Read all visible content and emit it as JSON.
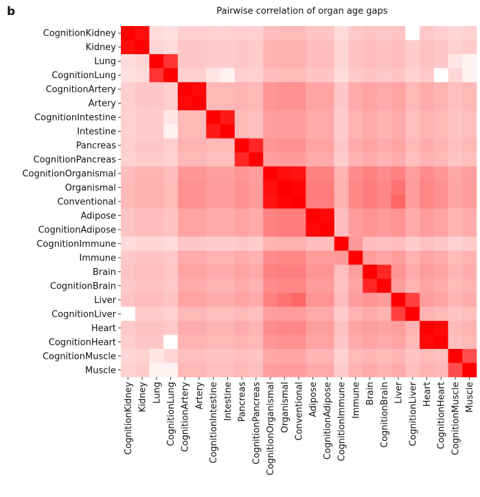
{
  "chart_data": {
    "type": "heatmap",
    "panel_label": "b",
    "title": "Pairwise correlation of organ age gaps",
    "categories": [
      "CognitionKidney",
      "Kidney",
      "Lung",
      "CognitionLung",
      "CognitionArtery",
      "Artery",
      "CognitionIntestine",
      "Intestine",
      "Pancreas",
      "CognitionPancreas",
      "CognitionOrganismal",
      "Organismal",
      "Conventional",
      "Adipose",
      "CognitionAdipose",
      "CognitionImmune",
      "Immune",
      "Brain",
      "CognitionBrain",
      "Liver",
      "CognitionLiver",
      "Heart",
      "CognitionHeart",
      "CognitionMuscle",
      "Muscle"
    ],
    "color_low": "#ffffff",
    "color_high": "#ff0000",
    "zlim": [
      0,
      1
    ],
    "values": [
      [
        1,
        0.95,
        0.14,
        0.12,
        0.19,
        0.19,
        0.18,
        0.18,
        0.19,
        0.18,
        0.26,
        0.27,
        0.27,
        0.23,
        0.23,
        0.14,
        0.21,
        0.23,
        0.21,
        0.23,
        0,
        0.21,
        0.19,
        0.16,
        0.18
      ],
      [
        0.95,
        1,
        0.16,
        0.14,
        0.22,
        0.22,
        0.2,
        0.2,
        0.22,
        0.2,
        0.3,
        0.31,
        0.31,
        0.26,
        0.26,
        0.16,
        0.24,
        0.26,
        0.24,
        0.26,
        0.2,
        0.24,
        0.22,
        0.18,
        0.2
      ],
      [
        0.14,
        0.16,
        1,
        0.8,
        0.22,
        0.22,
        0.2,
        0.2,
        0.22,
        0.2,
        0.3,
        0.31,
        0.31,
        0.26,
        0.26,
        0.16,
        0.24,
        0.26,
        0.24,
        0.26,
        0.2,
        0.24,
        0.22,
        0.1,
        0.05
      ],
      [
        0.12,
        0.14,
        0.8,
        1,
        0.19,
        0.19,
        0.1,
        0.05,
        0.19,
        0.18,
        0.26,
        0.27,
        0.27,
        0.23,
        0.23,
        0.14,
        0.21,
        0.23,
        0.21,
        0.23,
        0.18,
        0.21,
        0,
        0.16,
        0.05
      ],
      [
        0.19,
        0.22,
        0.22,
        0.19,
        1,
        0.97,
        0.28,
        0.28,
        0.3,
        0.28,
        0.41,
        0.43,
        0.43,
        0.36,
        0.36,
        0.22,
        0.33,
        0.36,
        0.33,
        0.36,
        0.28,
        0.33,
        0.3,
        0.25,
        0.28
      ],
      [
        0.19,
        0.22,
        0.22,
        0.19,
        0.97,
        1,
        0.28,
        0.28,
        0.3,
        0.28,
        0.41,
        0.43,
        0.43,
        0.36,
        0.36,
        0.22,
        0.33,
        0.36,
        0.33,
        0.36,
        0.28,
        0.33,
        0.3,
        0.25,
        0.28
      ],
      [
        0.18,
        0.2,
        0.2,
        0.1,
        0.28,
        0.28,
        1,
        0.9,
        0.28,
        0.25,
        0.38,
        0.39,
        0.39,
        0.33,
        0.33,
        0.2,
        0.3,
        0.33,
        0.3,
        0.33,
        0.25,
        0.3,
        0.28,
        0.23,
        0.25
      ],
      [
        0.18,
        0.2,
        0.2,
        0.05,
        0.28,
        0.28,
        0.9,
        1,
        0.28,
        0.25,
        0.38,
        0.39,
        0.39,
        0.33,
        0.33,
        0.2,
        0.3,
        0.33,
        0.3,
        0.33,
        0.25,
        0.3,
        0.28,
        0.23,
        0.25
      ],
      [
        0.19,
        0.22,
        0.22,
        0.19,
        0.3,
        0.3,
        0.28,
        0.28,
        1,
        0.85,
        0.41,
        0.43,
        0.43,
        0.36,
        0.36,
        0.22,
        0.33,
        0.36,
        0.33,
        0.36,
        0.28,
        0.33,
        0.3,
        0.25,
        0.28
      ],
      [
        0.18,
        0.2,
        0.2,
        0.18,
        0.28,
        0.28,
        0.25,
        0.25,
        0.85,
        1,
        0.38,
        0.39,
        0.39,
        0.33,
        0.33,
        0.2,
        0.3,
        0.33,
        0.3,
        0.33,
        0.25,
        0.3,
        0.28,
        0.23,
        0.25
      ],
      [
        0.26,
        0.3,
        0.3,
        0.26,
        0.41,
        0.41,
        0.38,
        0.38,
        0.41,
        0.38,
        1,
        0.95,
        0.93,
        0.49,
        0.49,
        0.3,
        0.45,
        0.49,
        0.45,
        0.49,
        0.38,
        0.45,
        0.41,
        0.34,
        0.38
      ],
      [
        0.27,
        0.31,
        0.31,
        0.27,
        0.43,
        0.43,
        0.39,
        0.39,
        0.43,
        0.39,
        0.95,
        1,
        0.98,
        0.51,
        0.51,
        0.31,
        0.47,
        0.51,
        0.47,
        0.55,
        0.39,
        0.47,
        0.43,
        0.35,
        0.39
      ],
      [
        0.27,
        0.31,
        0.31,
        0.27,
        0.43,
        0.43,
        0.39,
        0.39,
        0.43,
        0.39,
        0.93,
        0.98,
        1,
        0.51,
        0.51,
        0.31,
        0.47,
        0.51,
        0.47,
        0.6,
        0.39,
        0.47,
        0.43,
        0.35,
        0.39
      ],
      [
        0.23,
        0.26,
        0.26,
        0.23,
        0.36,
        0.36,
        0.33,
        0.33,
        0.36,
        0.33,
        0.49,
        0.51,
        0.51,
        1,
        0.97,
        0.26,
        0.39,
        0.42,
        0.39,
        0.42,
        0.33,
        0.39,
        0.36,
        0.29,
        0.33
      ],
      [
        0.23,
        0.26,
        0.26,
        0.23,
        0.36,
        0.36,
        0.33,
        0.33,
        0.36,
        0.33,
        0.49,
        0.51,
        0.51,
        0.97,
        1,
        0.26,
        0.39,
        0.42,
        0.39,
        0.42,
        0.33,
        0.39,
        0.36,
        0.29,
        0.33
      ],
      [
        0.14,
        0.16,
        0.16,
        0.14,
        0.22,
        0.22,
        0.2,
        0.2,
        0.22,
        0.2,
        0.3,
        0.31,
        0.31,
        0.26,
        0.26,
        1,
        0.4,
        0.26,
        0.24,
        0.26,
        0.2,
        0.24,
        0.22,
        0.18,
        0.2
      ],
      [
        0.21,
        0.24,
        0.24,
        0.21,
        0.33,
        0.33,
        0.3,
        0.3,
        0.33,
        0.3,
        0.45,
        0.47,
        0.47,
        0.39,
        0.39,
        0.4,
        1,
        0.39,
        0.36,
        0.39,
        0.3,
        0.36,
        0.33,
        0.27,
        0.3
      ],
      [
        0.23,
        0.26,
        0.26,
        0.23,
        0.36,
        0.36,
        0.33,
        0.33,
        0.36,
        0.33,
        0.49,
        0.51,
        0.51,
        0.42,
        0.42,
        0.26,
        0.39,
        1,
        0.85,
        0.42,
        0.33,
        0.39,
        0.36,
        0.29,
        0.33
      ],
      [
        0.21,
        0.24,
        0.24,
        0.21,
        0.33,
        0.33,
        0.3,
        0.3,
        0.33,
        0.3,
        0.45,
        0.47,
        0.47,
        0.39,
        0.39,
        0.24,
        0.36,
        0.85,
        1,
        0.39,
        0.3,
        0.36,
        0.33,
        0.27,
        0.3
      ],
      [
        0.23,
        0.26,
        0.26,
        0.23,
        0.36,
        0.36,
        0.33,
        0.33,
        0.36,
        0.33,
        0.49,
        0.55,
        0.6,
        0.42,
        0.42,
        0.26,
        0.39,
        0.42,
        0.39,
        1,
        0.75,
        0.39,
        0.36,
        0.29,
        0.33
      ],
      [
        0,
        0.2,
        0.2,
        0.18,
        0.28,
        0.28,
        0.25,
        0.25,
        0.28,
        0.25,
        0.38,
        0.39,
        0.39,
        0.33,
        0.33,
        0.2,
        0.3,
        0.33,
        0.3,
        0.75,
        1,
        0.3,
        0.28,
        0.23,
        0.25
      ],
      [
        0.21,
        0.24,
        0.24,
        0.21,
        0.33,
        0.33,
        0.3,
        0.3,
        0.33,
        0.3,
        0.45,
        0.47,
        0.47,
        0.39,
        0.39,
        0.24,
        0.36,
        0.39,
        0.36,
        0.39,
        0.3,
        1,
        0.97,
        0.27,
        0.3
      ],
      [
        0.19,
        0.22,
        0.22,
        0,
        0.3,
        0.3,
        0.28,
        0.28,
        0.3,
        0.28,
        0.41,
        0.43,
        0.43,
        0.36,
        0.36,
        0.22,
        0.33,
        0.36,
        0.33,
        0.36,
        0.28,
        0.97,
        1,
        0.25,
        0.28
      ],
      [
        0.16,
        0.18,
        0.1,
        0.16,
        0.25,
        0.25,
        0.23,
        0.23,
        0.25,
        0.23,
        0.34,
        0.35,
        0.35,
        0.29,
        0.29,
        0.18,
        0.27,
        0.29,
        0.27,
        0.29,
        0.23,
        0.27,
        0.25,
        1,
        0.7
      ],
      [
        0.18,
        0.2,
        0.05,
        0.05,
        0.28,
        0.28,
        0.25,
        0.25,
        0.28,
        0.25,
        0.38,
        0.39,
        0.39,
        0.33,
        0.33,
        0.2,
        0.3,
        0.33,
        0.3,
        0.33,
        0.25,
        0.3,
        0.28,
        0.7,
        1
      ]
    ]
  }
}
